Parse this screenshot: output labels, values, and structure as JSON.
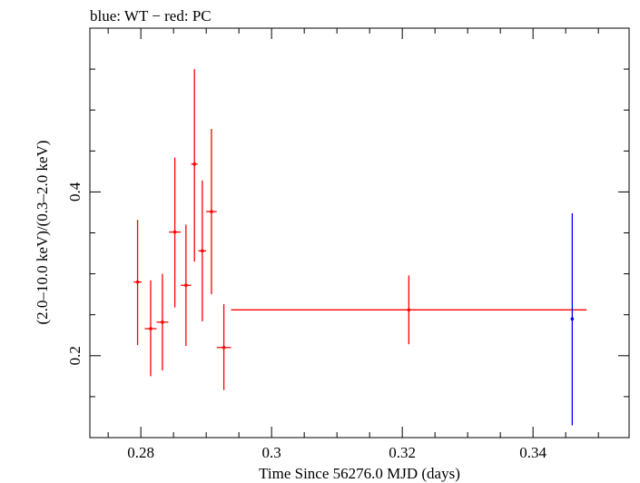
{
  "chart_data": {
    "type": "scatter",
    "title": "blue: WT − red: PC",
    "xlabel": "Time Since 56276.0 MJD (days)",
    "ylabel": "(2.0–10.0 keV)/(0.3–2.0 keV)",
    "xlim": [
      0.2722,
      0.3547
    ],
    "ylim": [
      0.1,
      0.6
    ],
    "x_ticks": [
      {
        "value": 0.28,
        "label": "0.28"
      },
      {
        "value": 0.3,
        "label": "0.3"
      },
      {
        "value": 0.32,
        "label": "0.32"
      },
      {
        "value": 0.34,
        "label": "0.34"
      }
    ],
    "y_ticks": [
      {
        "value": 0.2,
        "label": "0.2"
      },
      {
        "value": 0.4,
        "label": "0.4"
      }
    ],
    "series": [
      {
        "name": "PC",
        "color": "#ff0000",
        "points": [
          {
            "x": 0.2795,
            "xerr": 0.0006,
            "y": 0.29,
            "ylo": 0.213,
            "yhi": 0.366
          },
          {
            "x": 0.2815,
            "xerr": 0.0009,
            "y": 0.233,
            "ylo": 0.175,
            "yhi": 0.292
          },
          {
            "x": 0.2833,
            "xerr": 0.0009,
            "y": 0.241,
            "ylo": 0.182,
            "yhi": 0.3
          },
          {
            "x": 0.2852,
            "xerr": 0.0009,
            "y": 0.351,
            "ylo": 0.259,
            "yhi": 0.442
          },
          {
            "x": 0.2869,
            "xerr": 0.0008,
            "y": 0.286,
            "ylo": 0.212,
            "yhi": 0.36
          },
          {
            "x": 0.2882,
            "xerr": 0.0005,
            "y": 0.434,
            "ylo": 0.315,
            "yhi": 0.55
          },
          {
            "x": 0.2894,
            "xerr": 0.0006,
            "y": 0.328,
            "ylo": 0.242,
            "yhi": 0.414
          },
          {
            "x": 0.2908,
            "xerr": 0.0008,
            "y": 0.376,
            "ylo": 0.275,
            "yhi": 0.477
          },
          {
            "x": 0.2927,
            "xerr": 0.0011,
            "y": 0.21,
            "ylo": 0.158,
            "yhi": 0.263
          },
          {
            "x": 0.321,
            "xerr": 0.0272,
            "y": 0.256,
            "ylo": 0.214,
            "yhi": 0.298
          }
        ]
      },
      {
        "name": "WT",
        "color": "#0000ff",
        "points": [
          {
            "x": 0.346,
            "xerr": 0.0001,
            "y": 0.245,
            "ylo": 0.115,
            "yhi": 0.374
          }
        ]
      }
    ]
  }
}
